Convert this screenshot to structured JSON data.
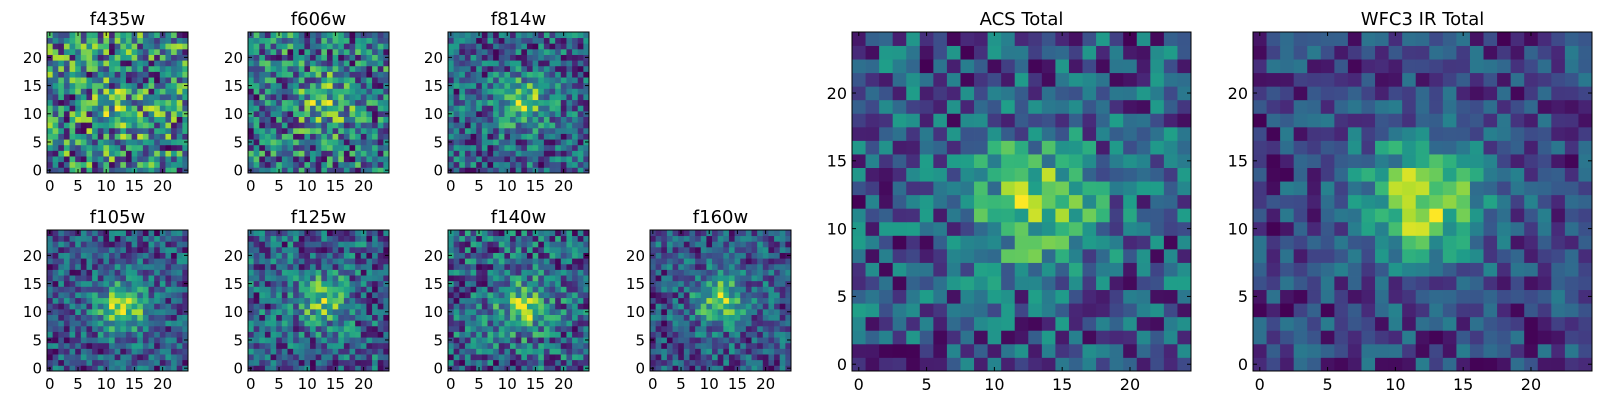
{
  "chart_data": [
    {
      "type": "heatmap",
      "title": "f435w",
      "xlim": [
        0,
        24
      ],
      "ylim": [
        0,
        24
      ],
      "xticks": [
        0,
        5,
        10,
        15,
        20
      ],
      "yticks": [
        0,
        5,
        10,
        15,
        20
      ],
      "colormap": "viridis",
      "center": [
        13,
        11
      ],
      "peak_strength": 0.2,
      "noise": 0.5,
      "seed": 11
    },
    {
      "type": "heatmap",
      "title": "f606w",
      "xlim": [
        0,
        24
      ],
      "ylim": [
        0,
        24
      ],
      "xticks": [
        0,
        5,
        10,
        15,
        20
      ],
      "yticks": [
        0,
        5,
        10,
        15,
        20
      ],
      "colormap": "viridis",
      "center": [
        13,
        12
      ],
      "peak_strength": 0.35,
      "noise": 0.42,
      "seed": 23
    },
    {
      "type": "heatmap",
      "title": "f814w",
      "xlim": [
        0,
        24
      ],
      "ylim": [
        0,
        24
      ],
      "xticks": [
        0,
        5,
        10,
        15,
        20
      ],
      "yticks": [
        0,
        5,
        10,
        15,
        20
      ],
      "colormap": "viridis",
      "center": [
        13,
        12
      ],
      "peak_strength": 0.5,
      "noise": 0.35,
      "seed": 37
    },
    {
      "type": "heatmap",
      "title": "f105w",
      "xlim": [
        0,
        24
      ],
      "ylim": [
        0,
        24
      ],
      "xticks": [
        0,
        5,
        10,
        15,
        20
      ],
      "yticks": [
        0,
        5,
        10,
        15,
        20
      ],
      "colormap": "viridis",
      "center": [
        13,
        11
      ],
      "peak_strength": 0.6,
      "noise": 0.28,
      "seed": 41
    },
    {
      "type": "heatmap",
      "title": "f125w",
      "xlim": [
        0,
        24
      ],
      "ylim": [
        0,
        24
      ],
      "xticks": [
        0,
        5,
        10,
        15,
        20
      ],
      "yticks": [
        0,
        5,
        10,
        15,
        20
      ],
      "colormap": "viridis",
      "center": [
        13,
        12
      ],
      "peak_strength": 0.45,
      "noise": 0.33,
      "seed": 53
    },
    {
      "type": "heatmap",
      "title": "f140w",
      "xlim": [
        0,
        24
      ],
      "ylim": [
        0,
        24
      ],
      "xticks": [
        0,
        5,
        10,
        15,
        20
      ],
      "yticks": [
        0,
        5,
        10,
        15,
        20
      ],
      "colormap": "viridis",
      "center": [
        13,
        11
      ],
      "peak_strength": 0.45,
      "noise": 0.33,
      "seed": 67
    },
    {
      "type": "heatmap",
      "title": "f160w",
      "xlim": [
        0,
        24
      ],
      "ylim": [
        0,
        24
      ],
      "xticks": [
        0,
        5,
        10,
        15,
        20
      ],
      "yticks": [
        0,
        5,
        10,
        15,
        20
      ],
      "colormap": "viridis",
      "center": [
        12,
        12
      ],
      "peak_strength": 0.55,
      "noise": 0.3,
      "seed": 79
    },
    {
      "type": "heatmap",
      "title": "ACS Total",
      "xlim": [
        0,
        24
      ],
      "ylim": [
        0,
        24
      ],
      "xticks": [
        0,
        5,
        10,
        15,
        20
      ],
      "yticks": [
        0,
        5,
        10,
        15,
        20
      ],
      "colormap": "viridis",
      "center": [
        13,
        12
      ],
      "peak_strength": 0.55,
      "noise": 0.3,
      "seed": 97
    },
    {
      "type": "heatmap",
      "title": "WFC3 IR Total",
      "xlim": [
        0,
        24
      ],
      "ylim": [
        0,
        24
      ],
      "xticks": [
        0,
        5,
        10,
        15,
        20
      ],
      "yticks": [
        0,
        5,
        10,
        15,
        20
      ],
      "colormap": "viridis",
      "center": [
        12,
        12
      ],
      "peak_strength": 0.7,
      "noise": 0.22,
      "seed": 113
    }
  ]
}
